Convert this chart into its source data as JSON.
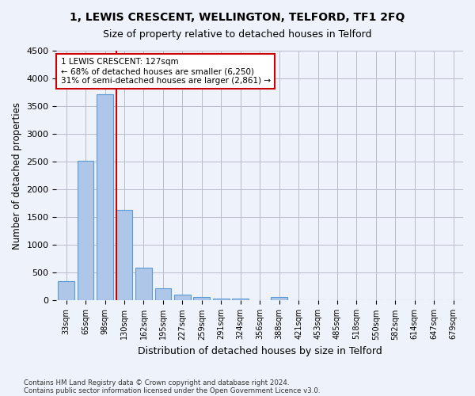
{
  "title_line1": "1, LEWIS CRESCENT, WELLINGTON, TELFORD, TF1 2FQ",
  "title_line2": "Size of property relative to detached houses in Telford",
  "xlabel": "Distribution of detached houses by size in Telford",
  "ylabel": "Number of detached properties",
  "bin_labels": [
    "33sqm",
    "65sqm",
    "98sqm",
    "130sqm",
    "162sqm",
    "195sqm",
    "227sqm",
    "259sqm",
    "291sqm",
    "324sqm",
    "356sqm",
    "388sqm",
    "421sqm",
    "453sqm",
    "485sqm",
    "518sqm",
    "550sqm",
    "582sqm",
    "614sqm",
    "647sqm",
    "679sqm"
  ],
  "bar_values": [
    355,
    2510,
    3710,
    1630,
    590,
    220,
    100,
    60,
    30,
    30,
    0,
    60,
    0,
    0,
    0,
    0,
    0,
    0,
    0,
    0,
    0
  ],
  "bar_color": "#aec6e8",
  "bar_edgecolor": "#5b9bd5",
  "bar_width": 0.85,
  "vline_pos": 2.6,
  "vline_color": "#cc0000",
  "ylim": [
    0,
    4500
  ],
  "yticks": [
    0,
    500,
    1000,
    1500,
    2000,
    2500,
    3000,
    3500,
    4000,
    4500
  ],
  "annotation_text": "1 LEWIS CRESCENT: 127sqm\n← 68% of detached houses are smaller (6,250)\n31% of semi-detached houses are larger (2,861) →",
  "annotation_box_color": "#ffffff",
  "annotation_box_edgecolor": "#cc0000",
  "footnote_line1": "Contains HM Land Registry data © Crown copyright and database right 2024.",
  "footnote_line2": "Contains public sector information licensed under the Open Government Licence v3.0.",
  "bg_color": "#eef2fa",
  "plot_bg_color": "#eef2fa",
  "grid_color": "#bbbbcc"
}
